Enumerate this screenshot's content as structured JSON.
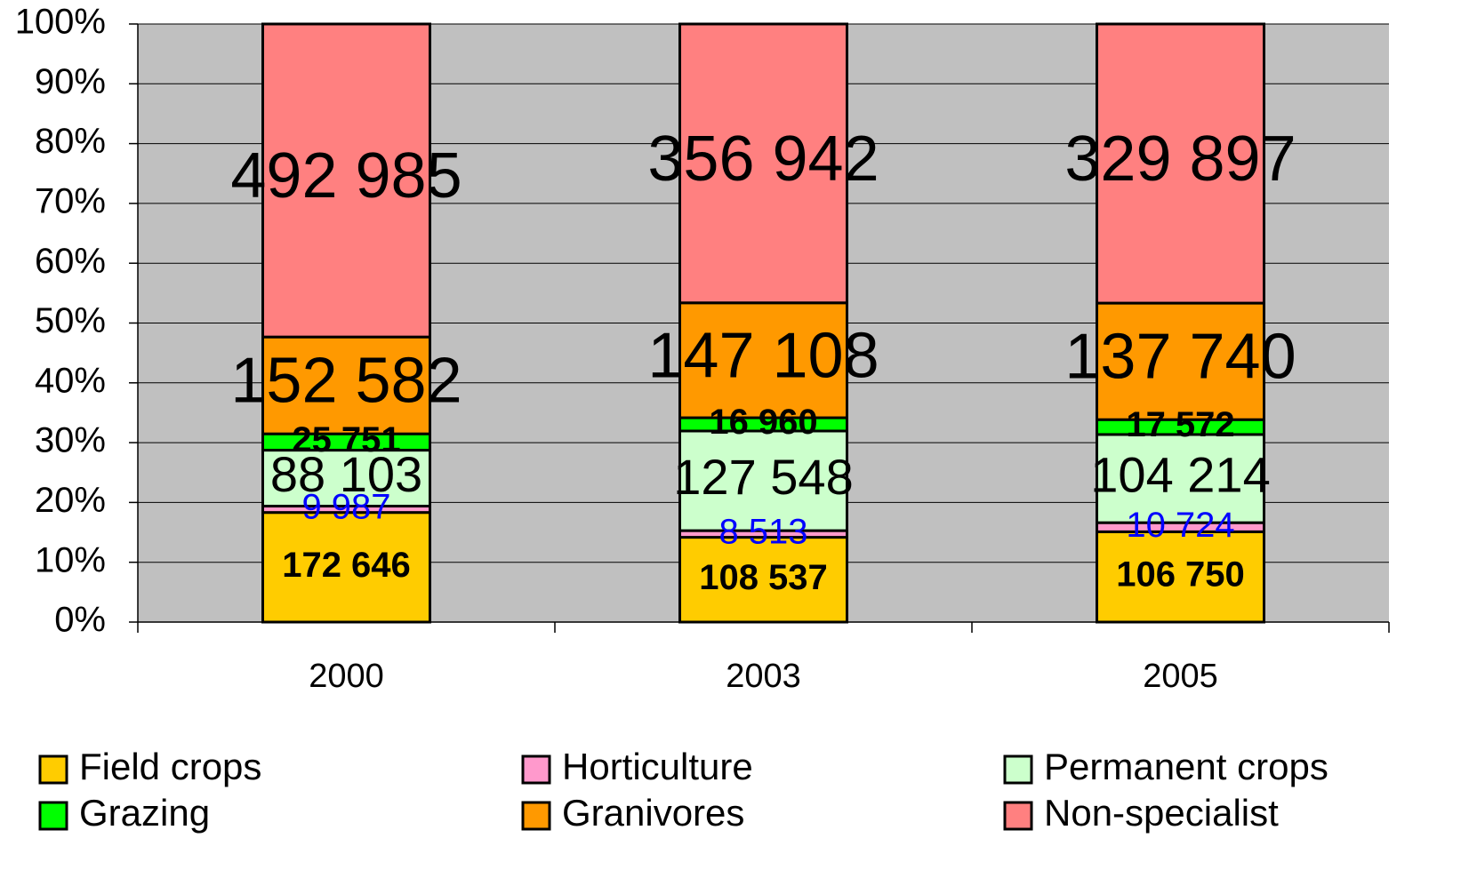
{
  "chart_data": {
    "type": "bar",
    "stack": "percent",
    "categories": [
      "2000",
      "2003",
      "2005"
    ],
    "series": [
      {
        "name": "Field crops",
        "color": "#FFCC00",
        "values": [
          172646,
          108537,
          106750
        ],
        "value_labels": [
          "172 646",
          "108 537",
          "106 750"
        ]
      },
      {
        "name": "Horticulture",
        "color": "#FF99CC",
        "values": [
          9987,
          8513,
          10724
        ],
        "value_labels": [
          "9 987",
          "8 513",
          "10 724"
        ]
      },
      {
        "name": "Permanent crops",
        "color": "#CCFFCC",
        "values": [
          88103,
          127548,
          104214
        ],
        "value_labels": [
          "88 103",
          "127 548",
          "104 214"
        ]
      },
      {
        "name": "Grazing",
        "color": "#00FF00",
        "values": [
          25751,
          16960,
          17572
        ],
        "value_labels": [
          "25 751",
          "16 960",
          "17 572"
        ]
      },
      {
        "name": "Granivores",
        "color": "#FF9900",
        "values": [
          152582,
          147108,
          137740
        ],
        "value_labels": [
          "152 582",
          "147 108",
          "137 740"
        ]
      },
      {
        "name": "Non-specialist",
        "color": "#FF8080",
        "values": [
          492985,
          356942,
          329897
        ],
        "value_labels": [
          "492 985",
          "356 942",
          "329 897"
        ]
      }
    ],
    "ylim": [
      0,
      100
    ],
    "yticks": [
      {
        "value": 0,
        "label": "0%"
      },
      {
        "value": 10,
        "label": "10%"
      },
      {
        "value": 20,
        "label": "20%"
      },
      {
        "value": 30,
        "label": "30%"
      },
      {
        "value": 40,
        "label": "40%"
      },
      {
        "value": 50,
        "label": "50%"
      },
      {
        "value": 60,
        "label": "60%"
      },
      {
        "value": 70,
        "label": "70%"
      },
      {
        "value": 80,
        "label": "80%"
      },
      {
        "value": 90,
        "label": "90%"
      },
      {
        "value": 100,
        "label": "100%"
      }
    ],
    "grid": true,
    "plot_background": "#C0C0C0",
    "legend": "bottom"
  }
}
